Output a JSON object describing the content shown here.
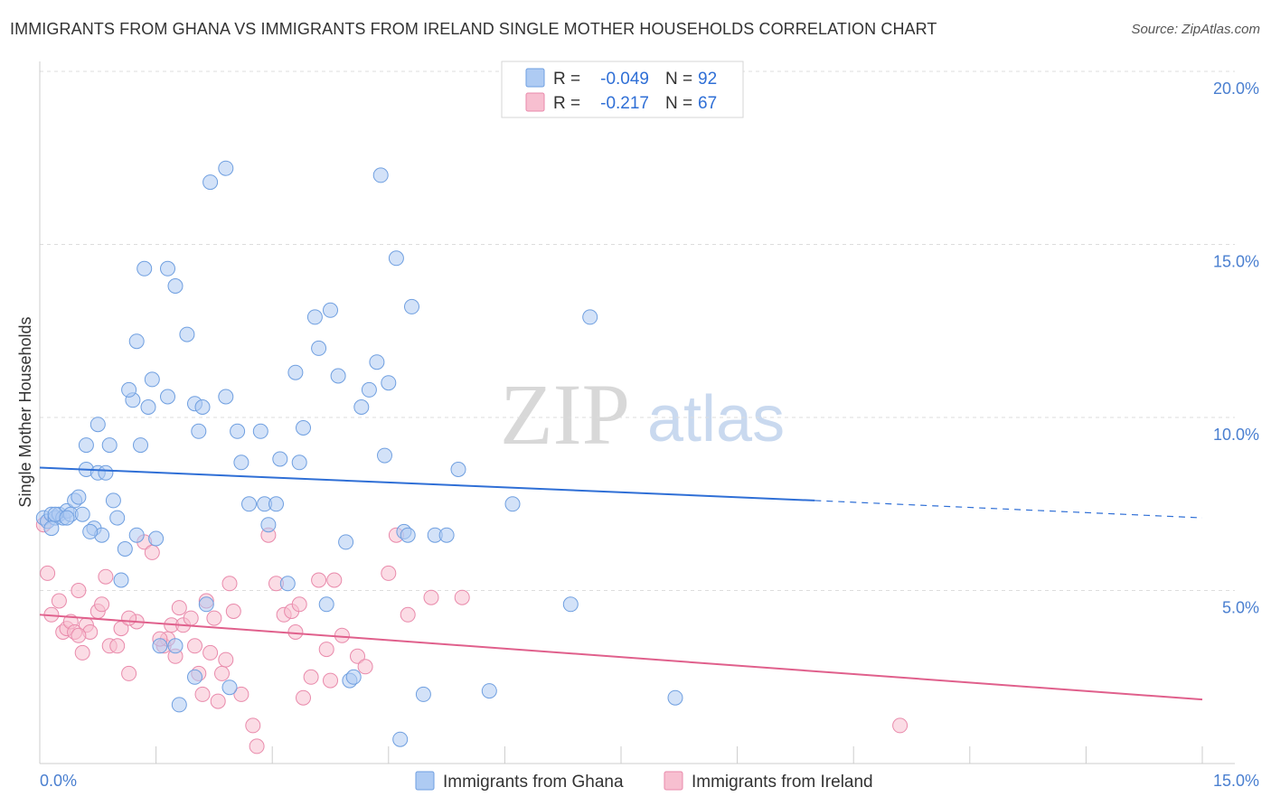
{
  "title": "IMMIGRANTS FROM GHANA VS IMMIGRANTS FROM IRELAND SINGLE MOTHER HOUSEHOLDS CORRELATION CHART",
  "source": "Source: ZipAtlas.com",
  "watermark": {
    "zip": "ZIP",
    "atlas": "atlas"
  },
  "colors": {
    "ghana_fill": "#aecbf3",
    "ghana_stroke": "#6f9fe0",
    "ghana_line": "#2f6fd6",
    "ireland_fill": "#f7bfd0",
    "ireland_stroke": "#e98aab",
    "ireland_line": "#e0608c",
    "grid": "#dddddd",
    "tick_text": "#4a7fd0"
  },
  "legend": {
    "rows": [
      {
        "r_label": "R =",
        "r_value": "-0.049",
        "n_label": "N =",
        "n_value": "92"
      },
      {
        "r_label": "R =",
        "r_value": "-0.217",
        "n_label": "N =",
        "n_value": "67"
      }
    ]
  },
  "chart_data": {
    "type": "scatter",
    "title": "IMMIGRANTS FROM GHANA VS IMMIGRANTS FROM IRELAND SINGLE MOTHER HOUSEHOLDS CORRELATION CHART",
    "xlabel": "",
    "ylabel": "Single Mother Households",
    "xlim": [
      0,
      15
    ],
    "ylim": [
      0,
      20
    ],
    "x_tick_labels": [
      "0.0%",
      "15.0%"
    ],
    "y_tick_labels": [
      "5.0%",
      "10.0%",
      "15.0%",
      "20.0%"
    ],
    "y_ticks": [
      5,
      10,
      15,
      20
    ],
    "grid": true,
    "legend_position": "top-center",
    "series": [
      {
        "name": "Immigrants from Ghana",
        "r": -0.049,
        "n": 92,
        "trend": {
          "x": [
            0,
            10
          ],
          "y": [
            8.55,
            7.6
          ],
          "dashed_to": [
            15,
            7.1
          ]
        },
        "points": [
          [
            0.05,
            7.1
          ],
          [
            0.1,
            7.0
          ],
          [
            0.15,
            7.2
          ],
          [
            0.2,
            7.1
          ],
          [
            0.25,
            7.2
          ],
          [
            0.3,
            7.1
          ],
          [
            0.35,
            7.3
          ],
          [
            0.4,
            7.2
          ],
          [
            0.45,
            7.6
          ],
          [
            0.5,
            7.7
          ],
          [
            0.55,
            7.2
          ],
          [
            0.6,
            8.5
          ],
          [
            0.75,
            8.4
          ],
          [
            0.85,
            8.4
          ],
          [
            0.7,
            6.8
          ],
          [
            0.8,
            6.6
          ],
          [
            0.65,
            6.7
          ],
          [
            0.9,
            9.2
          ],
          [
            0.95,
            7.6
          ],
          [
            1.0,
            7.1
          ],
          [
            0.75,
            9.8
          ],
          [
            0.6,
            9.2
          ],
          [
            1.05,
            5.3
          ],
          [
            1.1,
            6.2
          ],
          [
            1.25,
            6.6
          ],
          [
            1.2,
            10.5
          ],
          [
            1.15,
            10.8
          ],
          [
            1.3,
            9.2
          ],
          [
            1.4,
            10.3
          ],
          [
            1.5,
            6.5
          ],
          [
            1.35,
            14.3
          ],
          [
            1.45,
            11.1
          ],
          [
            1.65,
            10.6
          ],
          [
            1.55,
            3.4
          ],
          [
            1.65,
            14.3
          ],
          [
            1.75,
            13.8
          ],
          [
            1.75,
            3.4
          ],
          [
            1.8,
            1.7
          ],
          [
            1.9,
            12.4
          ],
          [
            2.0,
            10.4
          ],
          [
            2.1,
            10.3
          ],
          [
            2.05,
            9.6
          ],
          [
            2.15,
            4.6
          ],
          [
            2.2,
            16.8
          ],
          [
            2.4,
            17.2
          ],
          [
            2.45,
            2.2
          ],
          [
            2.4,
            10.6
          ],
          [
            2.55,
            9.6
          ],
          [
            2.6,
            8.7
          ],
          [
            2.7,
            7.5
          ],
          [
            2.85,
            9.6
          ],
          [
            2.9,
            7.5
          ],
          [
            2.95,
            6.9
          ],
          [
            3.05,
            7.5
          ],
          [
            3.1,
            8.8
          ],
          [
            3.2,
            5.2
          ],
          [
            3.35,
            8.7
          ],
          [
            3.3,
            11.3
          ],
          [
            3.4,
            9.7
          ],
          [
            3.55,
            12.9
          ],
          [
            3.6,
            12.0
          ],
          [
            3.75,
            13.1
          ],
          [
            3.85,
            11.2
          ],
          [
            3.95,
            6.4
          ],
          [
            4.0,
            2.4
          ],
          [
            4.05,
            2.5
          ],
          [
            4.15,
            10.3
          ],
          [
            4.25,
            10.8
          ],
          [
            4.35,
            11.6
          ],
          [
            4.4,
            17.0
          ],
          [
            4.45,
            8.9
          ],
          [
            4.5,
            11.0
          ],
          [
            4.6,
            14.6
          ],
          [
            4.65,
            0.7
          ],
          [
            4.7,
            6.7
          ],
          [
            4.75,
            6.6
          ],
          [
            4.8,
            13.2
          ],
          [
            4.95,
            2.0
          ],
          [
            5.1,
            6.6
          ],
          [
            5.25,
            6.6
          ],
          [
            5.4,
            8.5
          ],
          [
            5.8,
            2.1
          ],
          [
            6.1,
            7.5
          ],
          [
            6.85,
            4.6
          ],
          [
            7.1,
            12.9
          ],
          [
            8.2,
            1.9
          ],
          [
            3.7,
            4.6
          ],
          [
            2.0,
            2.5
          ],
          [
            1.25,
            12.2
          ],
          [
            0.15,
            6.8
          ],
          [
            0.2,
            7.2
          ],
          [
            0.35,
            7.1
          ]
        ]
      },
      {
        "name": "Immigrants from Ireland",
        "r": -0.217,
        "n": 67,
        "trend": {
          "x": [
            0,
            15
          ],
          "y": [
            4.3,
            1.85
          ]
        },
        "points": [
          [
            0.05,
            6.9
          ],
          [
            0.1,
            5.5
          ],
          [
            0.15,
            4.3
          ],
          [
            0.25,
            4.7
          ],
          [
            0.3,
            3.8
          ],
          [
            0.35,
            3.9
          ],
          [
            0.4,
            4.1
          ],
          [
            0.45,
            3.8
          ],
          [
            0.5,
            5.0
          ],
          [
            0.55,
            3.2
          ],
          [
            0.6,
            4.0
          ],
          [
            0.65,
            3.8
          ],
          [
            0.75,
            4.4
          ],
          [
            0.8,
            4.6
          ],
          [
            0.85,
            5.4
          ],
          [
            0.9,
            3.4
          ],
          [
            1.0,
            3.4
          ],
          [
            1.05,
            3.9
          ],
          [
            1.15,
            2.6
          ],
          [
            1.25,
            4.1
          ],
          [
            1.35,
            6.4
          ],
          [
            1.45,
            6.1
          ],
          [
            1.6,
            3.4
          ],
          [
            1.65,
            3.6
          ],
          [
            1.7,
            4.0
          ],
          [
            1.75,
            3.1
          ],
          [
            1.8,
            4.5
          ],
          [
            1.85,
            4.0
          ],
          [
            1.95,
            4.2
          ],
          [
            2.0,
            3.4
          ],
          [
            2.05,
            2.6
          ],
          [
            2.1,
            2.0
          ],
          [
            2.15,
            4.7
          ],
          [
            2.2,
            3.2
          ],
          [
            2.25,
            4.2
          ],
          [
            2.3,
            1.8
          ],
          [
            2.35,
            2.6
          ],
          [
            2.4,
            3.0
          ],
          [
            2.45,
            5.2
          ],
          [
            2.5,
            4.4
          ],
          [
            2.6,
            2.0
          ],
          [
            2.75,
            1.1
          ],
          [
            2.8,
            0.5
          ],
          [
            2.95,
            6.6
          ],
          [
            3.05,
            5.2
          ],
          [
            3.15,
            4.3
          ],
          [
            3.25,
            4.4
          ],
          [
            3.3,
            3.8
          ],
          [
            3.4,
            1.9
          ],
          [
            3.5,
            2.5
          ],
          [
            3.6,
            5.3
          ],
          [
            3.7,
            3.3
          ],
          [
            3.75,
            2.4
          ],
          [
            3.8,
            5.3
          ],
          [
            3.9,
            3.7
          ],
          [
            4.1,
            3.1
          ],
          [
            4.2,
            2.8
          ],
          [
            4.5,
            5.5
          ],
          [
            4.6,
            6.6
          ],
          [
            4.75,
            4.3
          ],
          [
            5.05,
            4.8
          ],
          [
            5.45,
            4.8
          ],
          [
            1.15,
            4.2
          ],
          [
            1.55,
            3.6
          ],
          [
            11.1,
            1.1
          ],
          [
            3.35,
            4.6
          ],
          [
            0.5,
            3.7
          ]
        ]
      }
    ]
  },
  "bottom_legend": {
    "items": [
      {
        "label": "Immigrants from Ghana"
      },
      {
        "label": "Immigrants from Ireland"
      }
    ]
  }
}
